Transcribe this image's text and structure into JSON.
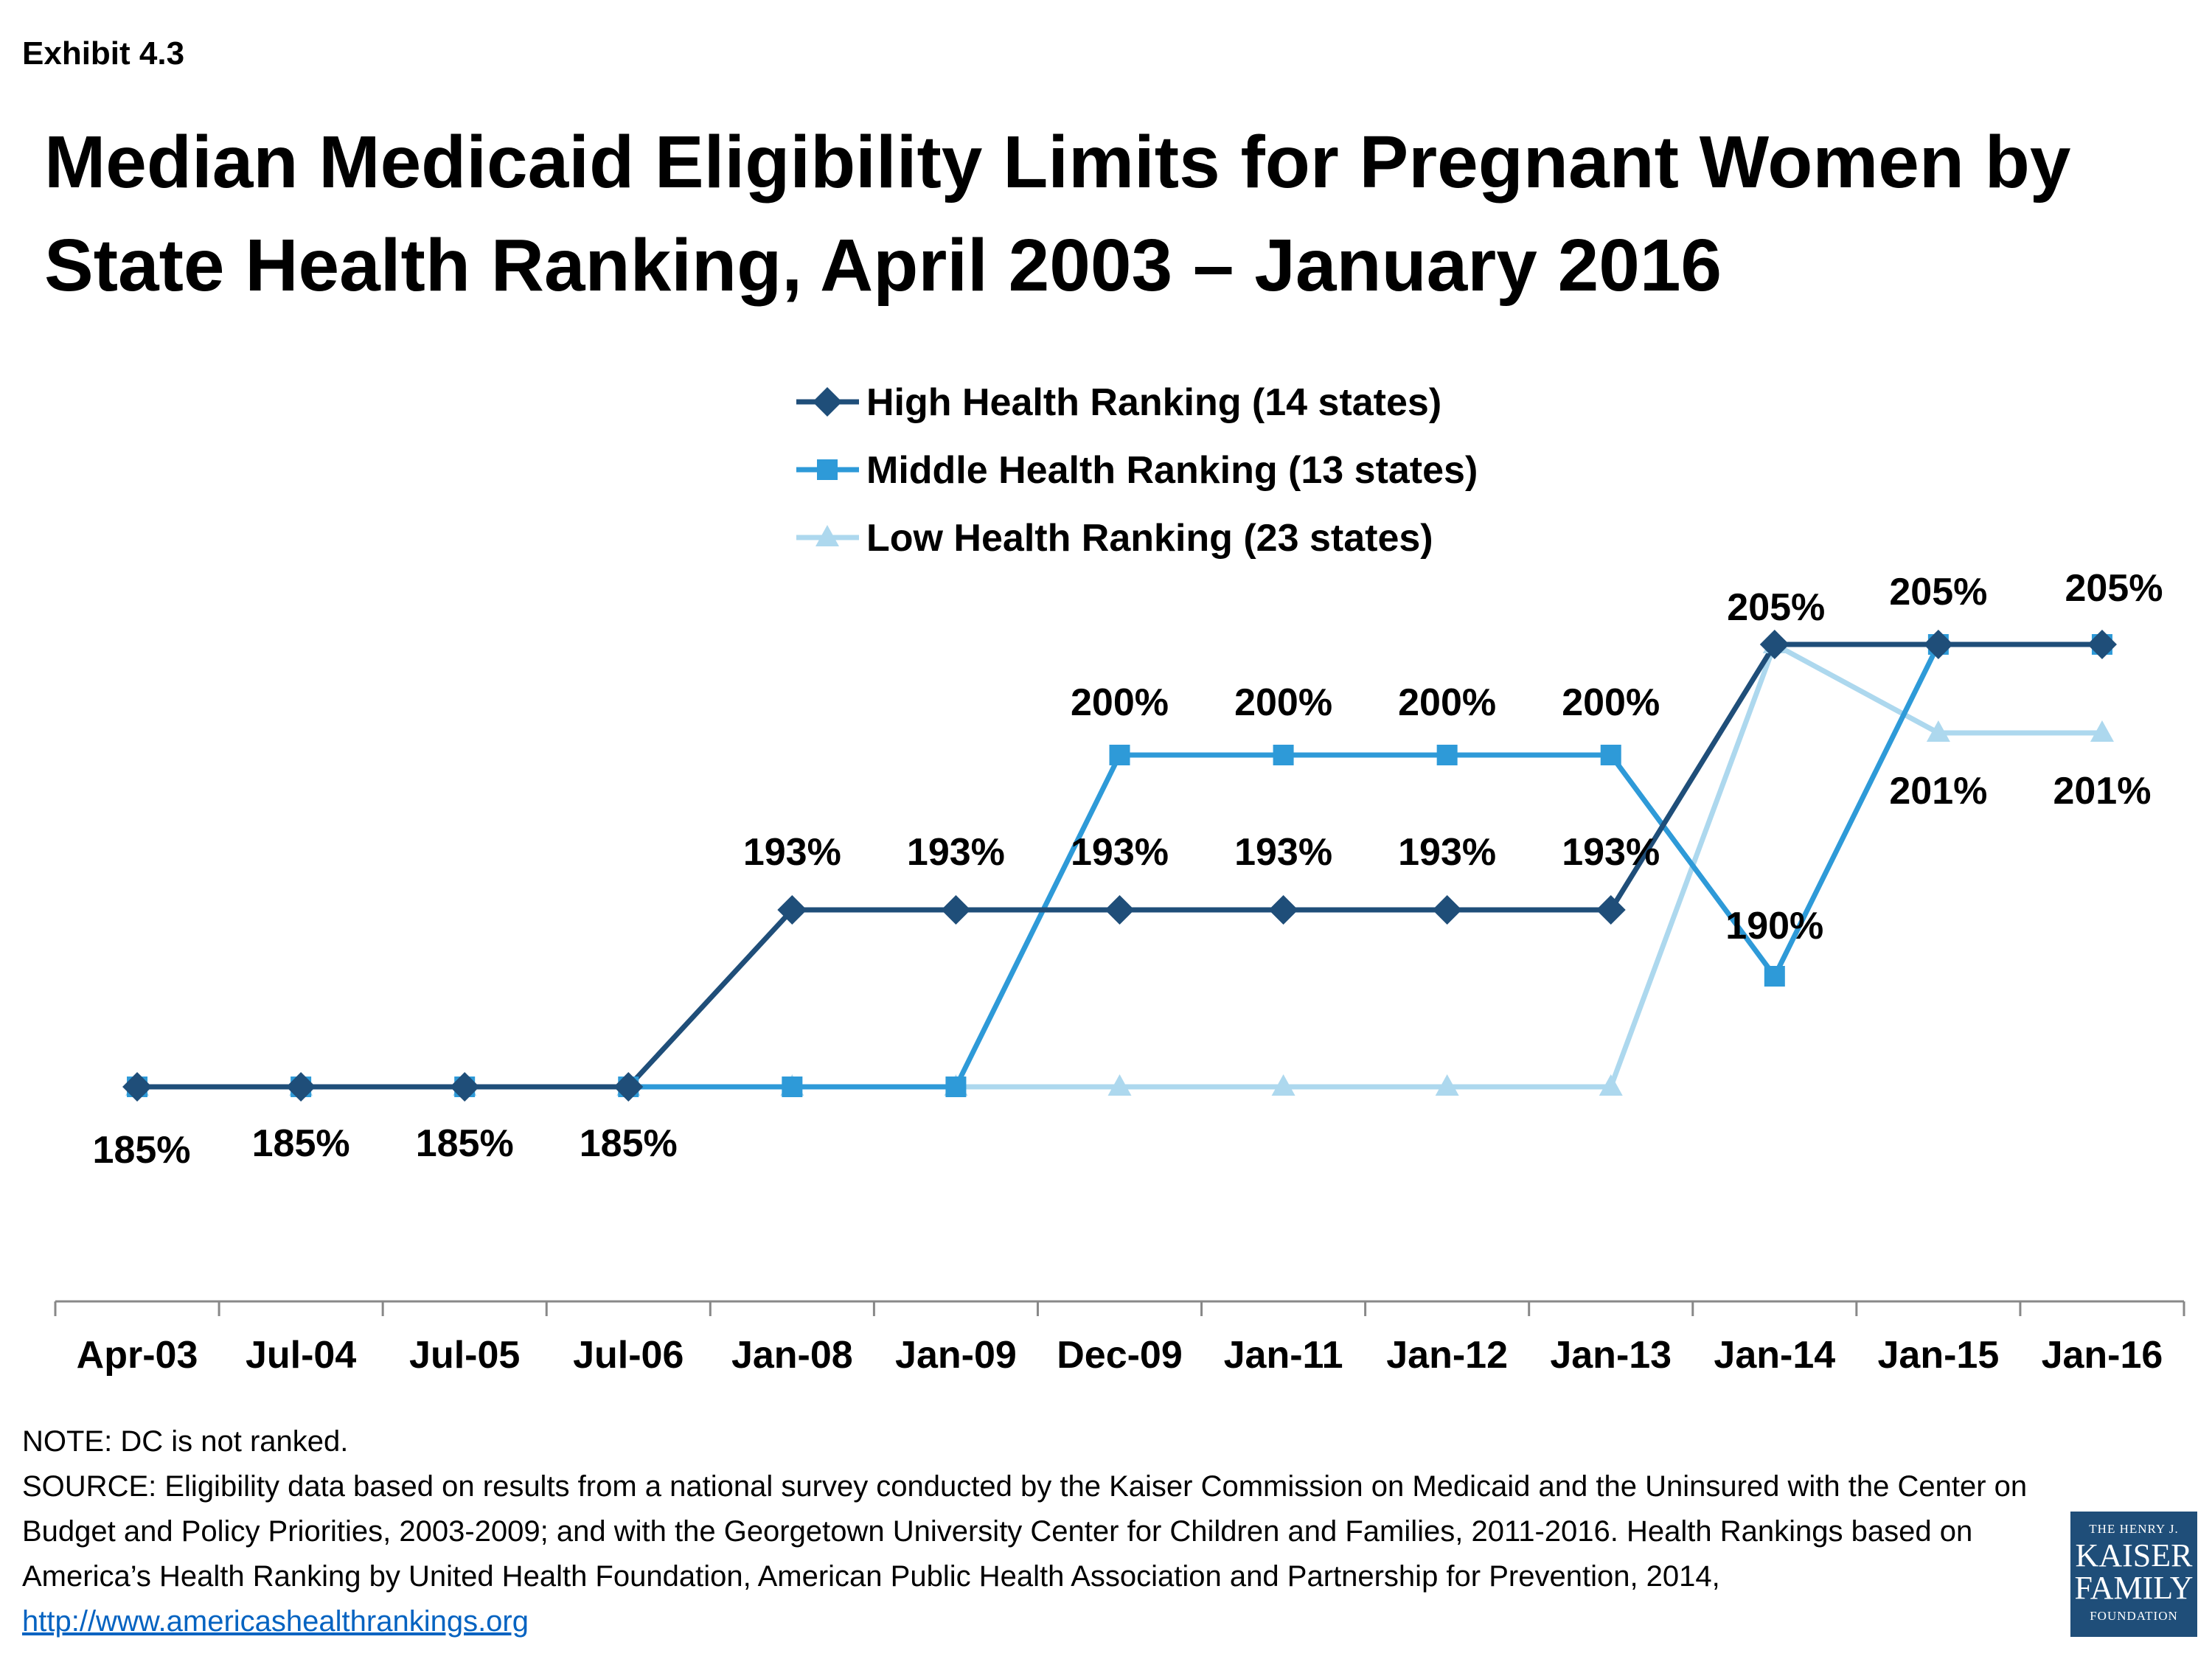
{
  "exhibit": "Exhibit 4.3",
  "title": "Median Medicaid Eligibility Limits for Pregnant Women by State Health Ranking, April 2003 – January 2016",
  "chart_data": {
    "type": "line",
    "categories": [
      "Apr-03",
      "Jul-04",
      "Jul-05",
      "Jul-06",
      "Jan-08",
      "Jan-09",
      "Dec-09",
      "Jan-11",
      "Jan-12",
      "Jan-13",
      "Jan-14",
      "Jan-15",
      "Jan-16"
    ],
    "ylim": [
      170,
      215
    ],
    "grid": false,
    "legend": "top-center",
    "series": [
      {
        "name": "High Health Ranking (14 states)",
        "color": "#1F4E79",
        "marker": "diamond",
        "values": [
          185,
          185,
          185,
          185,
          193,
          193,
          193,
          193,
          193,
          193,
          205,
          205,
          205
        ],
        "labels": [
          "185%",
          "185%",
          "185%",
          "185%",
          "193%",
          "193%",
          "193%",
          "193%",
          "193%",
          "193%",
          "205%",
          "",
          "205%"
        ]
      },
      {
        "name": "Middle Health Ranking (13 states)",
        "color": "#2E9AD8",
        "marker": "square",
        "values": [
          185,
          185,
          185,
          185,
          185,
          185,
          200,
          200,
          200,
          200,
          190,
          205,
          205
        ],
        "labels": [
          "",
          "",
          "",
          "",
          "",
          "",
          "200%",
          "200%",
          "200%",
          "200%",
          "190%",
          "205%",
          ""
        ]
      },
      {
        "name": "Low Health Ranking (23 states)",
        "color": "#ADD8EE",
        "marker": "triangle",
        "values": [
          185,
          185,
          185,
          185,
          185,
          185,
          185,
          185,
          185,
          185,
          205,
          201,
          201
        ],
        "labels": [
          "",
          "",
          "",
          "",
          "",
          "",
          "",
          "",
          "",
          "",
          "",
          "201%",
          "201%"
        ]
      }
    ]
  },
  "notes": {
    "note": "NOTE: DC is not ranked.",
    "source": "SOURCE: Eligibility data based on results from a national survey conducted by the Kaiser Commission on Medicaid and the Uninsured with the Center on Budget and Policy Priorities, 2003-2009; and with the Georgetown University Center for Children and Families, 2011-2016. Health Rankings based on America’s Health Ranking by United Health Foundation, American Public Health Association and Partnership for Prevention, 2014,",
    "link": "http://www.americashealthrankings.org"
  },
  "logo": {
    "line1": "THE HENRY J.",
    "line2": "KAISER",
    "line3": "FAMILY",
    "line4": "FOUNDATION"
  }
}
